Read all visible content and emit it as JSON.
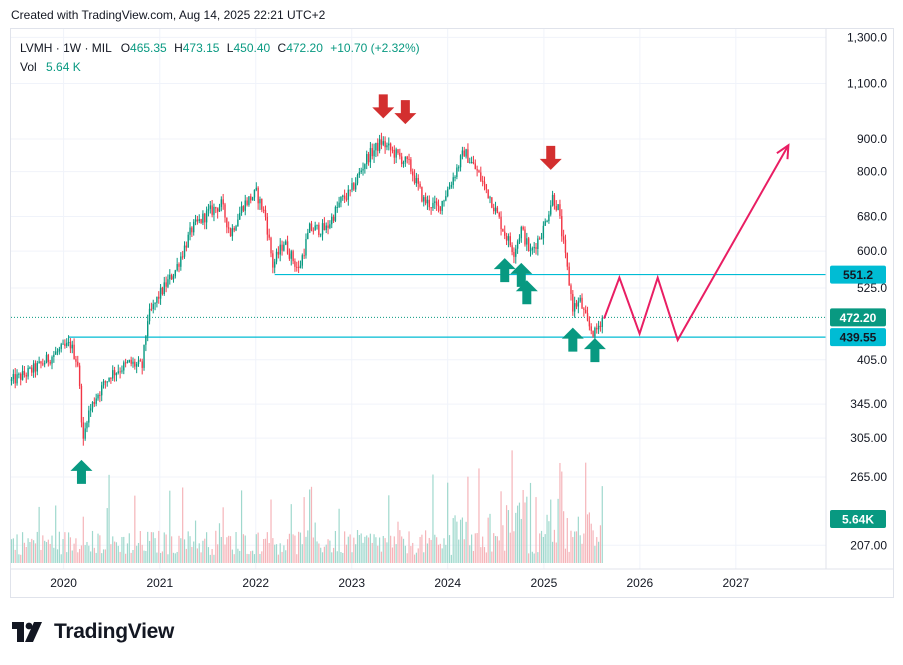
{
  "caption": "Created with TradingView.com, Aug 14, 2025 22:21 UTC+2",
  "brand": {
    "name": "TradingView"
  },
  "legend": {
    "symbol": "LVMH · 1W · MIL",
    "open_label": "O",
    "open": "465.35",
    "high_label": "H",
    "high": "473.15",
    "low_label": "L",
    "low": "450.40",
    "close_label": "C",
    "close": "472.20",
    "change": "+10.70 (+2.32%)",
    "vol_label": "Vol",
    "vol": "5.64 K"
  },
  "colors": {
    "up": "#089981",
    "down": "#f23645",
    "level_line": "#00bcd4",
    "projection": "#e91e63",
    "arrow_up": "#089981",
    "arrow_down": "#d32f2f",
    "volume_up": "#9fd8cd",
    "volume_down": "#f5b4b9",
    "price_tag": "#089981",
    "level_tag": "#00bcd4"
  },
  "chart_data": {
    "type": "candlestick",
    "y_scale": "log",
    "ylim": [
      190,
      1340
    ],
    "xlim": [
      "2019-06-15",
      "2027-12-10"
    ],
    "yticks": [
      "1,300.0",
      "1,100.0",
      "900.0",
      "800.0",
      "680.0",
      "600.0",
      "525.0",
      "405.0",
      "345.00",
      "305.00",
      "265.00",
      "207.00"
    ],
    "ytick_values": [
      1300,
      1100,
      900,
      800,
      680,
      600,
      525,
      405,
      345,
      305,
      265,
      207
    ],
    "xticks": [
      "2020",
      "2021",
      "2022",
      "2023",
      "2024",
      "2025",
      "2026",
      "2027"
    ],
    "xtick_dates": [
      "2020-01-01",
      "2021-01-01",
      "2022-01-01",
      "2023-01-01",
      "2024-01-01",
      "2025-01-01",
      "2026-01-01",
      "2027-01-01"
    ],
    "price_path": [
      [
        "2019-06-17",
        375
      ],
      [
        "2019-08-12",
        385
      ],
      [
        "2019-10-07",
        398
      ],
      [
        "2019-12-02",
        415
      ],
      [
        "2020-01-27",
        428
      ],
      [
        "2020-02-24",
        400
      ],
      [
        "2020-03-16",
        300
      ],
      [
        "2020-03-30",
        330
      ],
      [
        "2020-05-04",
        355
      ],
      [
        "2020-06-29",
        385
      ],
      [
        "2020-09-07",
        400
      ],
      [
        "2020-10-26",
        395
      ],
      [
        "2020-11-16",
        470
      ],
      [
        "2020-12-28",
        510
      ],
      [
        "2021-03-01",
        560
      ],
      [
        "2021-05-03",
        650
      ],
      [
        "2021-07-05",
        690
      ],
      [
        "2021-08-23",
        710
      ],
      [
        "2021-09-27",
        640
      ],
      [
        "2021-11-15",
        710
      ],
      [
        "2022-01-03",
        740
      ],
      [
        "2022-02-07",
        680
      ],
      [
        "2022-03-07",
        570
      ],
      [
        "2022-04-18",
        620
      ],
      [
        "2022-06-13",
        560
      ],
      [
        "2022-07-25",
        650
      ],
      [
        "2022-09-26",
        650
      ],
      [
        "2022-11-21",
        720
      ],
      [
        "2022-12-26",
        740
      ],
      [
        "2023-02-27",
        840
      ],
      [
        "2023-04-24",
        890
      ],
      [
        "2023-06-05",
        860
      ],
      [
        "2023-08-07",
        820
      ],
      [
        "2023-10-02",
        720
      ],
      [
        "2023-11-27",
        700
      ],
      [
        "2024-01-08",
        760
      ],
      [
        "2024-03-04",
        860
      ],
      [
        "2024-04-22",
        800
      ],
      [
        "2024-06-10",
        730
      ],
      [
        "2024-08-05",
        640
      ],
      [
        "2024-09-09",
        600
      ],
      [
        "2024-10-07",
        650
      ],
      [
        "2024-11-11",
        595
      ],
      [
        "2024-12-30",
        650
      ],
      [
        "2025-02-03",
        730
      ],
      [
        "2025-02-24",
        700
      ],
      [
        "2025-03-31",
        560
      ],
      [
        "2025-04-21",
        490
      ],
      [
        "2025-05-19",
        500
      ],
      [
        "2025-06-16",
        460
      ],
      [
        "2025-07-14",
        445
      ],
      [
        "2025-08-11",
        472.2
      ]
    ],
    "last_price": "472.20",
    "levels": [
      {
        "label": "551.2",
        "value": 551.2,
        "from": "2022-03-14"
      },
      {
        "label": "439.55",
        "value": 439.55,
        "from": "2020-01-20"
      }
    ],
    "projection": [
      [
        "2025-08-18",
        470
      ],
      [
        "2025-10-15",
        545
      ],
      [
        "2025-12-31",
        445
      ],
      [
        "2026-03-10",
        545
      ],
      [
        "2026-05-25",
        435
      ],
      [
        "2027-07-20",
        880
      ]
    ],
    "arrows_down": [
      {
        "date": "2023-05-01",
        "value": 970
      },
      {
        "date": "2023-07-24",
        "value": 950
      },
      {
        "date": "2025-01-27",
        "value": 805
      }
    ],
    "arrows_up": [
      {
        "date": "2020-03-09",
        "value": 282
      },
      {
        "date": "2024-08-05",
        "value": 585
      },
      {
        "date": "2024-10-07",
        "value": 575
      },
      {
        "date": "2024-10-28",
        "value": 540
      },
      {
        "date": "2025-04-21",
        "value": 455
      },
      {
        "date": "2025-07-14",
        "value": 438
      }
    ],
    "volume_label": "5.64K"
  }
}
